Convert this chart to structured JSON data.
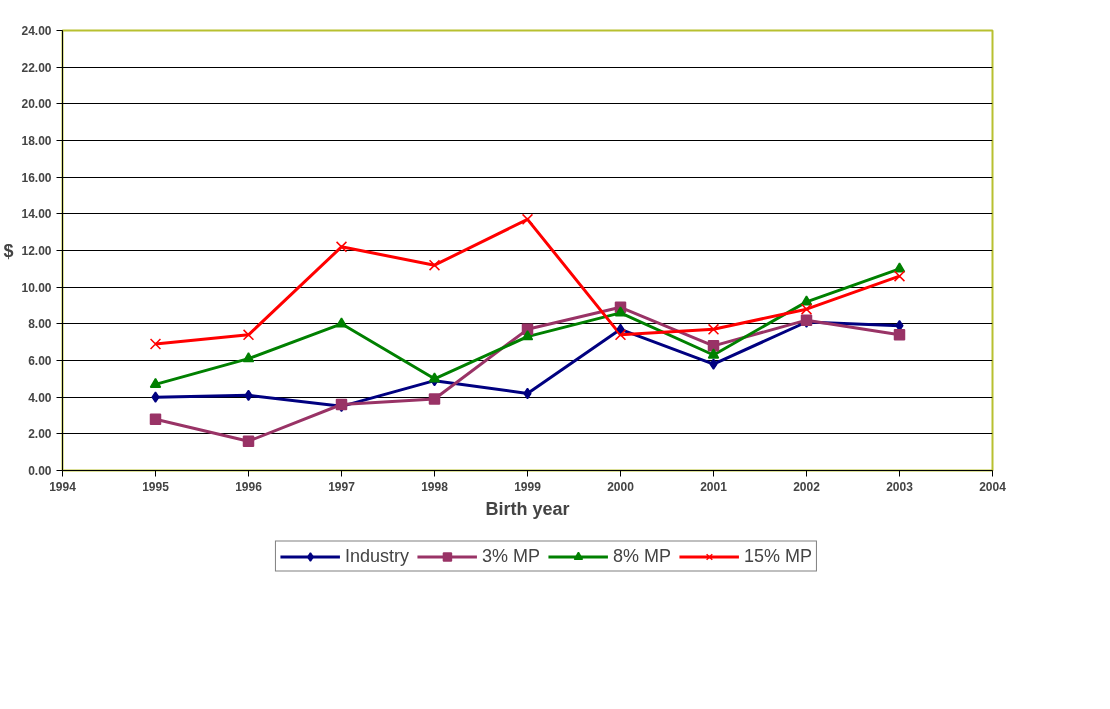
{
  "chart_data": {
    "type": "line",
    "xlabel": "Birth year",
    "ylabel": "$",
    "x": [
      1995,
      1996,
      1997,
      1998,
      1999,
      2000,
      2001,
      2002,
      2003
    ],
    "series": [
      {
        "name": "Industry",
        "color": "#000080",
        "marker": "diamond",
        "values": [
          4.0,
          4.1,
          3.5,
          4.9,
          4.2,
          7.7,
          5.8,
          8.1,
          7.9
        ]
      },
      {
        "name": "3% MP",
        "color": "#993366",
        "marker": "square",
        "values": [
          2.8,
          1.6,
          3.6,
          3.9,
          7.7,
          8.9,
          6.8,
          8.2,
          7.4
        ]
      },
      {
        "name": "8% MP",
        "color": "#008000",
        "marker": "triangle",
        "values": [
          4.7,
          6.1,
          8.0,
          5.0,
          7.3,
          8.6,
          6.3,
          9.2,
          11.0
        ]
      },
      {
        "name": "15% MP",
        "color": "#ff0000",
        "marker": "cross",
        "values": [
          6.9,
          7.4,
          12.2,
          11.2,
          13.7,
          7.4,
          7.7,
          8.8,
          10.6
        ]
      }
    ],
    "xlim": [
      1994,
      2004
    ],
    "xticks": [
      1994,
      1995,
      1996,
      1997,
      1998,
      1999,
      2000,
      2001,
      2002,
      2003,
      2004
    ],
    "ylim": [
      0,
      24
    ],
    "yticks": [
      {
        "value": 0,
        "label": "0.00"
      },
      {
        "value": 2,
        "label": "2.00"
      },
      {
        "value": 4,
        "label": "4.00"
      },
      {
        "value": 6,
        "label": "6.00"
      },
      {
        "value": 8,
        "label": "8.00"
      },
      {
        "value": 10,
        "label": "10.00"
      },
      {
        "value": 12,
        "label": "12.00"
      },
      {
        "value": 14,
        "label": "14.00"
      },
      {
        "value": 16,
        "label": "16.00"
      },
      {
        "value": 18,
        "label": "18.00"
      },
      {
        "value": 20,
        "label": "20.00"
      },
      {
        "value": 22,
        "label": "22.00"
      },
      {
        "value": 24,
        "label": "24.00"
      }
    ],
    "grid": "y",
    "legend": "bottom",
    "line_style": "solid"
  }
}
